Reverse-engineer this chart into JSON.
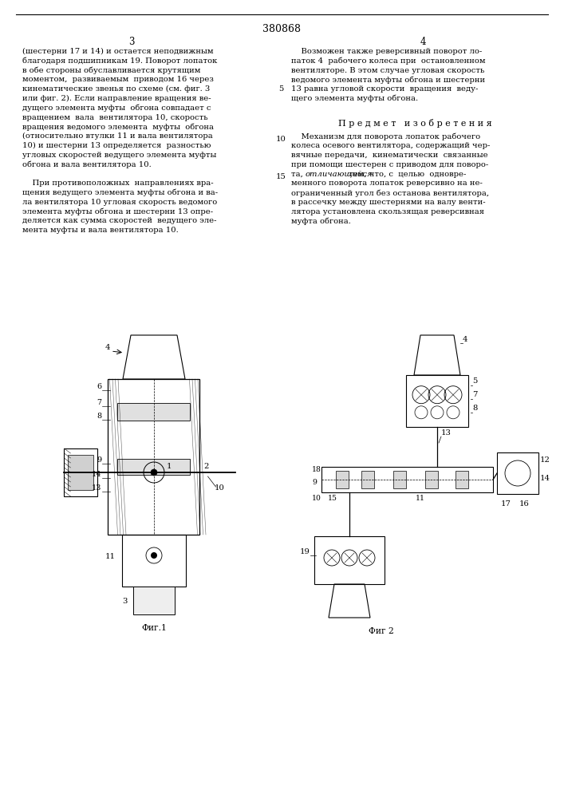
{
  "patent_number": "380868",
  "page_left": "3",
  "page_right": "4",
  "left_column_text": [
    "(шестерни 17 и 14) и остается неподвижным",
    "благодаря подшипникам 19. Поворот лопаток",
    "в обе стороны обуславливается крутящим",
    "моментом,  развиваемым  приводом 16 через",
    "кинематические звенья по схеме (см. фиг. 3",
    "или фиг. 2). Если направление вращения ве-",
    "дущего элемента муфты  обгона совпадает с",
    "вращением  вала  вентилятора 10, скорость",
    "вращения ведомого элемента  муфты  обгона",
    "(относительно втулки 11 и вала вентилятора",
    "10) и шестерни 13 определяется  разностью",
    "угловых скоростей ведущего элемента муфты",
    "обгона и вала вентилятора 10.",
    "",
    "    При противоположных  направлениях вра-",
    "щения ведущего элемента муфты обгона и ва-",
    "ла вентилятора 10 угловая скорость ведомого",
    "элемента муфты обгона и шестерни 13 опре-",
    "деляется как сумма скоростей  ведущего эле-",
    "мента муфты и вала вентилятора 10."
  ],
  "right_column_text_top": [
    "    Возможен также реверсивный поворот ло-",
    "паток 4  рабочего колеса при  остановленном",
    "вентиляторе. В этом случае угловая скорость",
    "ведомого элемента муфты обгона и шестерни",
    "13 равна угловой скорости  вращения  веду-",
    "щего элемента муфты обгона."
  ],
  "section_title": "П р е д м е т   и з о б р е т е н и я",
  "right_column_bottom_pre_italic": "    Механизм для поворота лопаток рабочего колеса осевого вентилятора, содержащий чер-вячные передачи,  кинематически  связанные при помощи шестерен с приводом для поворо-та, ",
  "right_column_bottom_italic": "отличающийся",
  "right_column_bottom_post_italic": " тем, что, с  целью  одновре-менного поворота лопаток реверсивно на не-ограниченный угол без останова вентилятора, в рассечку между шестернями на валу венти-лятора установлена скользящая реверсивная муфта обгона.",
  "right_column_text_bottom": [
    "    Механизм для поворота лопаток рабочего",
    "колеса осевого вентилятора, содержащий чер-",
    "вячные передачи,  кинематически  связанные",
    "при помощи шестерен с приводом для поворо-",
    "та, отличающийся тем, что, с  целью  одновре-",
    "менного поворота лопаток реверсивно на не-",
    "ограниченный угол без останова вентилятора,",
    "в рассечку между шестернями на валу венти-",
    "лятора установлена скользящая реверсивная",
    "муфта обгона."
  ],
  "italic_line_index": 4,
  "italic_word": "отличающийся",
  "italic_pre": "та, ",
  "italic_post": " тем, что, с  целью  одновре-",
  "fig1_label": "Фиг.1",
  "fig2_label": "Фиг 2",
  "bg_color": "#ffffff",
  "text_color": "#000000",
  "font_size_body": 7.2,
  "font_size_header": 8.5,
  "font_size_section": 8.0
}
